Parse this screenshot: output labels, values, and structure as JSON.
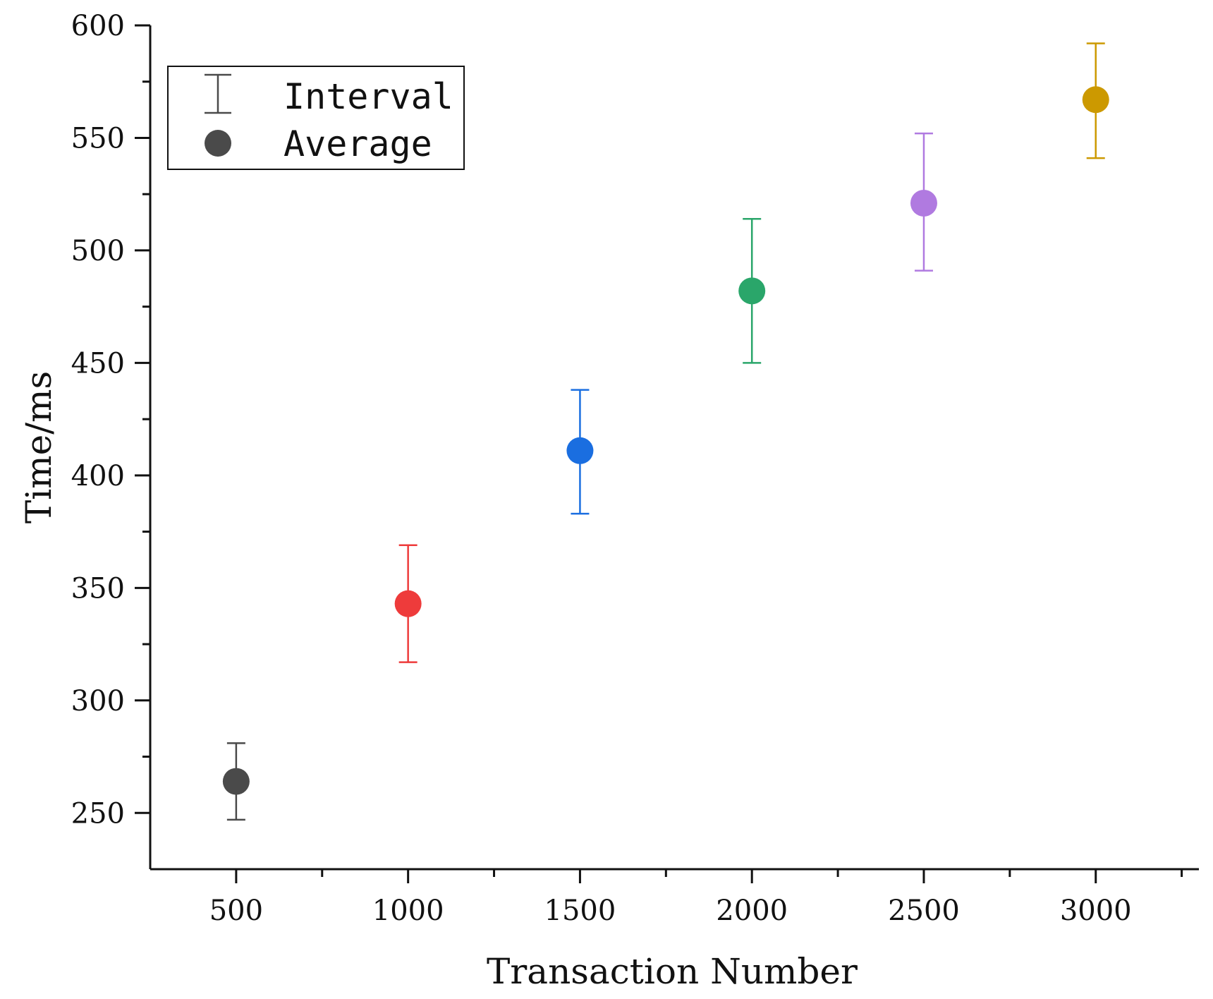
{
  "chart_data": {
    "type": "scatter",
    "title": "",
    "xlabel": "Transaction Number",
    "ylabel": "Time/ms",
    "xlim": [
      250,
      3300
    ],
    "ylim": [
      225,
      600
    ],
    "xticks": [
      500,
      1000,
      1500,
      2000,
      2500,
      3000
    ],
    "yticks": [
      250,
      300,
      350,
      400,
      450,
      500,
      550,
      600
    ],
    "grid": false,
    "legend": {
      "position": "top-left",
      "entries": [
        {
          "key": "interval",
          "label": "Interval"
        },
        {
          "key": "average",
          "label": "Average"
        }
      ]
    },
    "points": [
      {
        "x": 500,
        "avg": 264,
        "low": 247,
        "high": 281,
        "color": "#4a4a4a"
      },
      {
        "x": 1000,
        "avg": 343,
        "low": 317,
        "high": 369,
        "color": "#ee3b3b"
      },
      {
        "x": 1500,
        "avg": 411,
        "low": 383,
        "high": 438,
        "color": "#1a6ee0"
      },
      {
        "x": 2000,
        "avg": 482,
        "low": 450,
        "high": 514,
        "color": "#2aa66a"
      },
      {
        "x": 2500,
        "avg": 521,
        "low": 491,
        "high": 552,
        "color": "#b07ae0"
      },
      {
        "x": 3000,
        "avg": 567,
        "low": 541,
        "high": 592,
        "color": "#cc9900"
      }
    ],
    "legend_color": "#4a4a4a"
  }
}
